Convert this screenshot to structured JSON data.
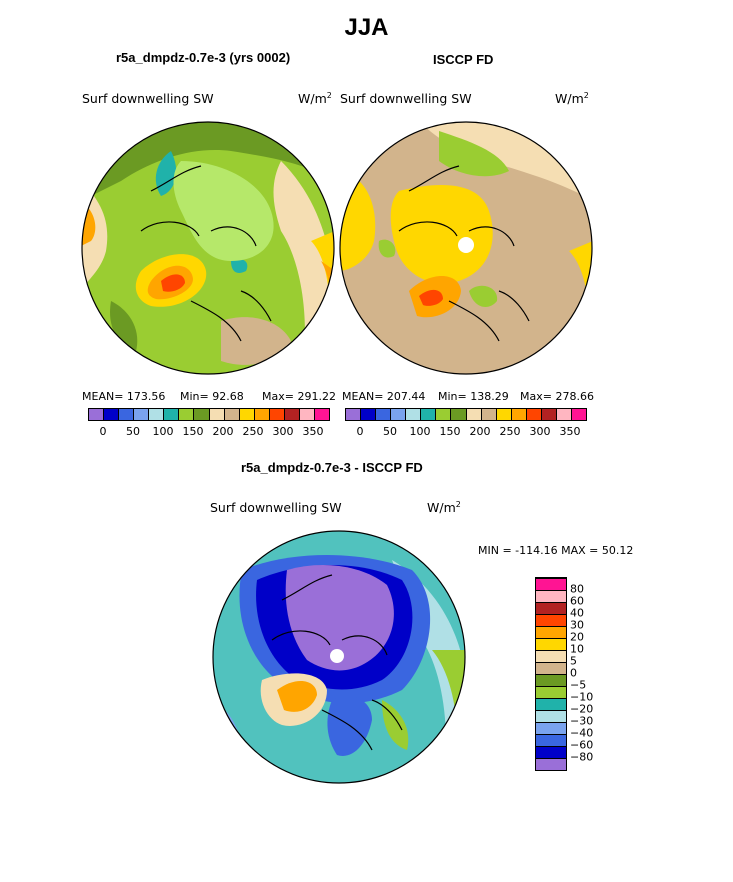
{
  "figure": {
    "title": "JJA",
    "panel_left": {
      "title": "r5a_dmpdz-0.7e-3 (yrs 0002)",
      "variable": "Surf downwelling SW",
      "units": "W/m",
      "units_exp": "2",
      "mean_label": "MEAN= 173.56",
      "min_label": "Min=  92.68",
      "max_label": "Max= 291.22"
    },
    "panel_right": {
      "title": "ISCCP FD",
      "variable": "Surf downwelling SW",
      "units": "W/m",
      "units_exp": "2",
      "mean_label": "MEAN= 207.44",
      "min_label": "Min= 138.29",
      "max_label": "Max= 278.66"
    },
    "panel_diff": {
      "title": "r5a_dmpdz-0.7e-3 - ISCCP FD",
      "variable": "Surf downwelling SW",
      "units": "W/m",
      "units_exp": "2",
      "minmax_label": "MIN = -114.16 MAX =  50.12"
    }
  },
  "legend_abs": {
    "colors": [
      "#9a6fd8",
      "#0000c8",
      "#3a66e0",
      "#7aa3ee",
      "#b0e0e6",
      "#20b2aa",
      "#9acd32",
      "#6b9a23",
      "#f5deb3",
      "#d2b48c",
      "#ffd700",
      "#ffa500",
      "#ff4500",
      "#b22222",
      "#ffb6c1",
      "#ff1493"
    ],
    "tick_labels": [
      "0",
      "50",
      "100",
      "150",
      "200",
      "250",
      "300",
      "350"
    ]
  },
  "legend_diff": {
    "colors": [
      "#9a6fd8",
      "#0000c8",
      "#3a66e0",
      "#7aa3ee",
      "#b0e0e6",
      "#20b2aa",
      "#9acd32",
      "#6b9a23",
      "#d2b48c",
      "#f5deb3",
      "#ffd700",
      "#ffa500",
      "#ff4500",
      "#b22222",
      "#ffb6c1",
      "#ff1493"
    ],
    "tick_labels": [
      "−80",
      "−60",
      "−40",
      "−30",
      "−20",
      "−10",
      "−5",
      "0",
      "5",
      "10",
      "20",
      "30",
      "40",
      "60",
      "80"
    ]
  }
}
